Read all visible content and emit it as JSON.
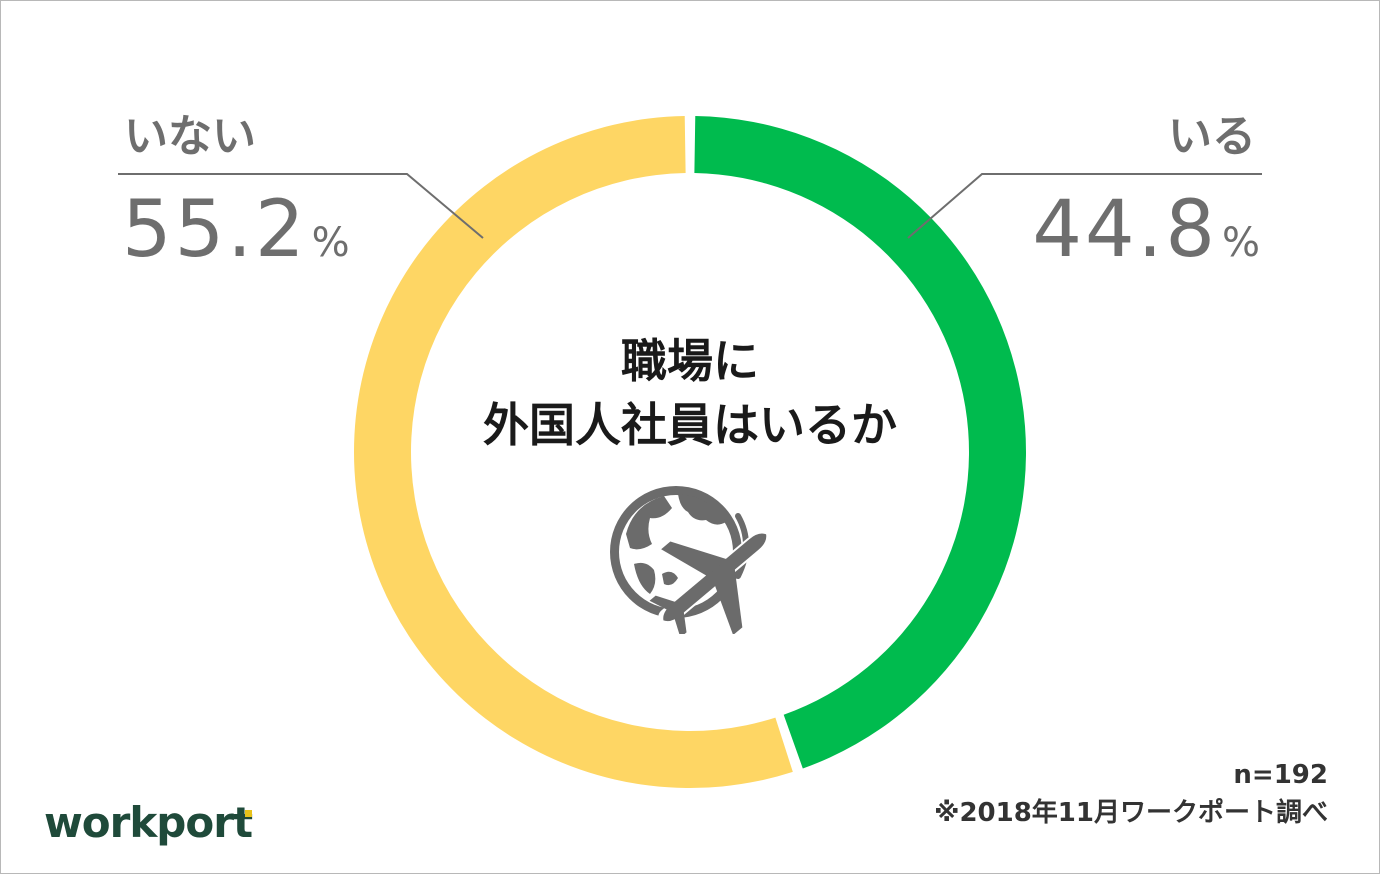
{
  "chart_data": {
    "type": "pie",
    "title": "職場に外国人社員はいるか",
    "title_lines": [
      "職場に",
      "外国人社員はいるか"
    ],
    "style": "donut",
    "slices": [
      {
        "label": "いる",
        "value": 44.8,
        "color": "#00bb4e"
      },
      {
        "label": "いない",
        "value": 55.2,
        "color": "#fed664"
      }
    ],
    "unit": "%",
    "legend": "none"
  },
  "labels": {
    "left": {
      "name": "いない",
      "value": "55.2",
      "unit": "%"
    },
    "right": {
      "name": "いる",
      "value": "44.8",
      "unit": "%"
    }
  },
  "notes": {
    "sample": "n=192",
    "source": "※2018年11月ワークポート調べ"
  },
  "logo": {
    "text_main": "workpor",
    "text_end": "t"
  },
  "colors": {
    "yes": "#00bb4e",
    "no": "#fed664",
    "leader_line": "#6e6e6e",
    "icon": "#6b6b6b"
  },
  "icon": {
    "name": "globe-airplane-icon"
  }
}
